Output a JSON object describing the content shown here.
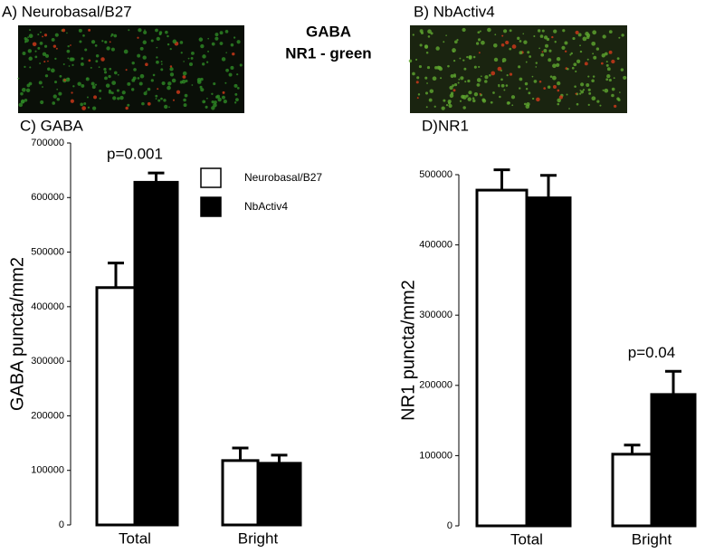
{
  "panels": [
    {
      "label": "A) Neurobasal/B27"
    },
    {
      "label": "B) NbActiv4"
    }
  ],
  "stain_labels": [
    {
      "text": "GABA",
      "color": "#d42020"
    },
    {
      "text": "NR1 - green",
      "color": "#1f9a1f"
    }
  ],
  "chart_data": [
    {
      "type": "bar",
      "title": "C) GABA",
      "y_label": "GABA puncta/mm2",
      "categories": [
        "Total",
        "Bright"
      ],
      "series": [
        {
          "name": "Neurobasal/B27",
          "color": "#ffffff",
          "values": [
            435000,
            118000
          ],
          "errors": [
            45000,
            23000
          ]
        },
        {
          "name": "NbActiv4",
          "color": "#000000",
          "values": [
            628000,
            113000
          ],
          "errors": [
            17000,
            15000
          ]
        }
      ],
      "ylim": [
        0,
        700000
      ],
      "yticks": [
        0,
        100000,
        200000,
        300000,
        400000,
        500000,
        600000,
        700000
      ],
      "annotations": [
        {
          "text": "p=0.001",
          "category": 0
        }
      ],
      "legend": true
    },
    {
      "type": "bar",
      "title": "D)NR1",
      "y_label": "NR1 puncta/mm2",
      "categories": [
        "Total",
        "Bright"
      ],
      "series": [
        {
          "color": "#ffffff",
          "values": [
            478000,
            102000
          ],
          "errors": [
            29000,
            13000
          ]
        },
        {
          "color": "#000000",
          "values": [
            467000,
            187000
          ],
          "errors": [
            32000,
            33000
          ]
        }
      ],
      "ylim": [
        0,
        500000
      ],
      "yticks": [
        0,
        100000,
        200000,
        300000,
        400000,
        500000
      ],
      "annotations": [
        {
          "text": "p=0.04",
          "category": 1
        }
      ],
      "legend": false
    }
  ]
}
